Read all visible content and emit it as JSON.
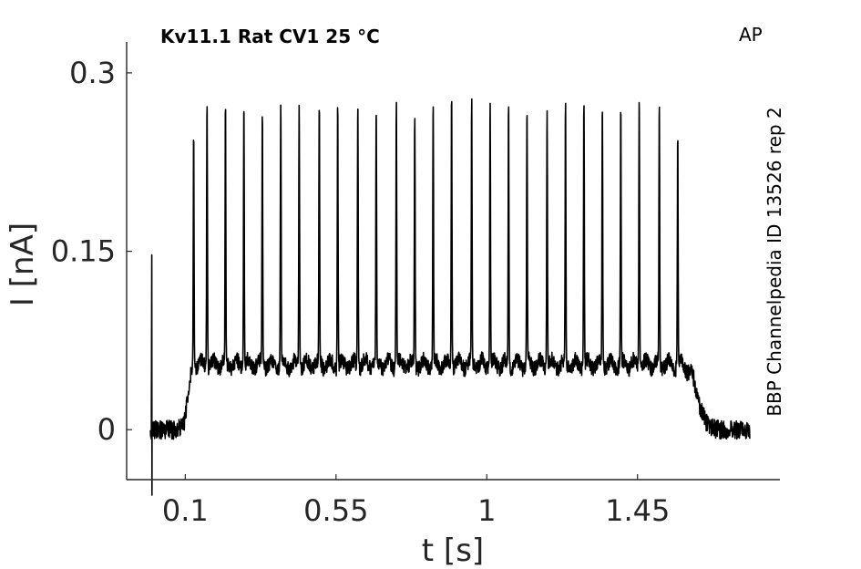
{
  "chart_data": {
    "type": "line",
    "title": "Kv11.1  Rat  CV1  25 °C",
    "corner_label": "AP",
    "side_label": "BBP Channelpedia ID 13526 rep 2",
    "xlabel": "t [s]",
    "ylabel": "I [nA]",
    "xlim": [
      -0.075,
      1.875
    ],
    "ylim": [
      -0.042,
      0.326
    ],
    "x_ticks": [
      0.1,
      0.55,
      1,
      1.45
    ],
    "x_tick_labels": [
      "0.1",
      "0.55",
      "1",
      "1.45"
    ],
    "y_ticks": [
      0,
      0.15,
      0.3
    ],
    "y_tick_labels": [
      "0",
      "0.15",
      "0.3"
    ],
    "grid": false,
    "series": [
      {
        "color": "#000000",
        "baseline": 0.0,
        "plateau": 0.055,
        "step_on": 0.1,
        "step_off": 1.6,
        "initial_transient": {
          "x": 0.0,
          "y": 0.147,
          "min": -0.055
        },
        "spike_times": [
          0.125,
          0.165,
          0.22,
          0.275,
          0.33,
          0.385,
          0.44,
          0.5,
          0.555,
          0.615,
          0.67,
          0.73,
          0.785,
          0.84,
          0.895,
          0.955,
          1.01,
          1.065,
          1.12,
          1.18,
          1.235,
          1.29,
          1.345,
          1.4,
          1.455,
          1.515,
          1.57
        ],
        "spike_peaks": [
          0.252,
          0.278,
          0.278,
          0.277,
          0.27,
          0.278,
          0.276,
          0.278,
          0.278,
          0.276,
          0.273,
          0.278,
          0.266,
          0.278,
          0.285,
          0.281,
          0.279,
          0.278,
          0.273,
          0.271,
          0.279,
          0.279,
          0.276,
          0.276,
          0.282,
          0.278,
          0.251
        ]
      }
    ]
  }
}
